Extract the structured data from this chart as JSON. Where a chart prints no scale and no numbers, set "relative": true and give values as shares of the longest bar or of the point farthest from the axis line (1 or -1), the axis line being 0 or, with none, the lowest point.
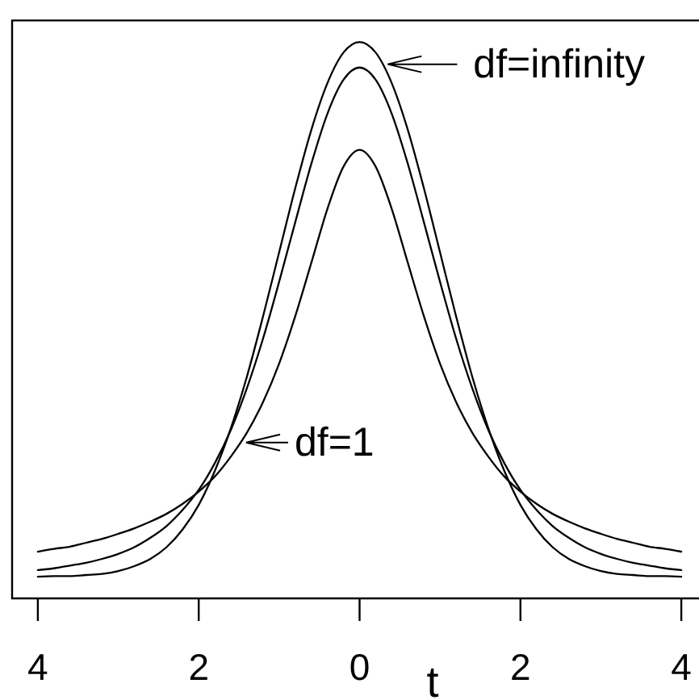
{
  "chart_data": {
    "type": "line",
    "relative": true,
    "xlabel": "t",
    "x": [
      -4,
      -3.8,
      -3.6,
      -3.4,
      -3.2,
      -3,
      -2.8,
      -2.6,
      -2.4,
      -2.2,
      -2,
      -1.8,
      -1.6,
      -1.4,
      -1.2,
      -1,
      -0.8,
      -0.6,
      -0.4,
      -0.2,
      0,
      0.2,
      0.4,
      0.6,
      0.8,
      1,
      1.2,
      1.4,
      1.6,
      1.8,
      2,
      2.2,
      2.4,
      2.6,
      2.8,
      3,
      3.2,
      3.4,
      3.6,
      3.8,
      4
    ],
    "xlim": [
      -4.32,
      4.22
    ],
    "xticks": [
      {
        "value": -4,
        "label": "4"
      },
      {
        "value": -2,
        "label": "2"
      },
      0,
      2,
      4
    ],
    "series": [
      {
        "color": "#000000",
        "values": [
          0.039,
          0.04,
          0.04,
          0.042,
          0.044,
          0.049,
          0.058,
          0.071,
          0.092,
          0.124,
          0.168,
          0.229,
          0.306,
          0.399,
          0.507,
          0.622,
          0.737,
          0.842,
          0.926,
          0.981,
          1.0,
          0.981,
          0.926,
          0.842,
          0.737,
          0.622,
          0.507,
          0.399,
          0.306,
          0.229,
          0.168,
          0.124,
          0.092,
          0.071,
          0.058,
          0.049,
          0.044,
          0.042,
          0.04,
          0.04,
          0.039
        ]
      },
      {
        "color": "#000000",
        "values": [
          0.051,
          0.054,
          0.059,
          0.064,
          0.071,
          0.08,
          0.092,
          0.109,
          0.13,
          0.159,
          0.195,
          0.243,
          0.303,
          0.378,
          0.467,
          0.569,
          0.676,
          0.781,
          0.871,
          0.932,
          0.954,
          0.932,
          0.871,
          0.781,
          0.676,
          0.569,
          0.467,
          0.378,
          0.303,
          0.243,
          0.195,
          0.159,
          0.13,
          0.109,
          0.092,
          0.08,
          0.071,
          0.064,
          0.059,
          0.054,
          0.051
        ]
      },
      {
        "color": "#000000",
        "values": [
          0.084,
          0.089,
          0.093,
          0.1,
          0.107,
          0.116,
          0.126,
          0.138,
          0.152,
          0.17,
          0.192,
          0.219,
          0.255,
          0.298,
          0.353,
          0.422,
          0.507,
          0.603,
          0.7,
          0.776,
          0.806,
          0.776,
          0.7,
          0.603,
          0.507,
          0.422,
          0.353,
          0.298,
          0.255,
          0.219,
          0.192,
          0.17,
          0.152,
          0.138,
          0.126,
          0.116,
          0.107,
          0.1,
          0.093,
          0.089,
          0.084
        ]
      }
    ],
    "annotations": [
      {
        "text": "df=infinity",
        "x": 0.35,
        "y": 0.96
      },
      {
        "text": "df=1",
        "x": -1.41,
        "y": 0.28
      }
    ],
    "tick_labels": "x",
    "line_style": "solid"
  }
}
